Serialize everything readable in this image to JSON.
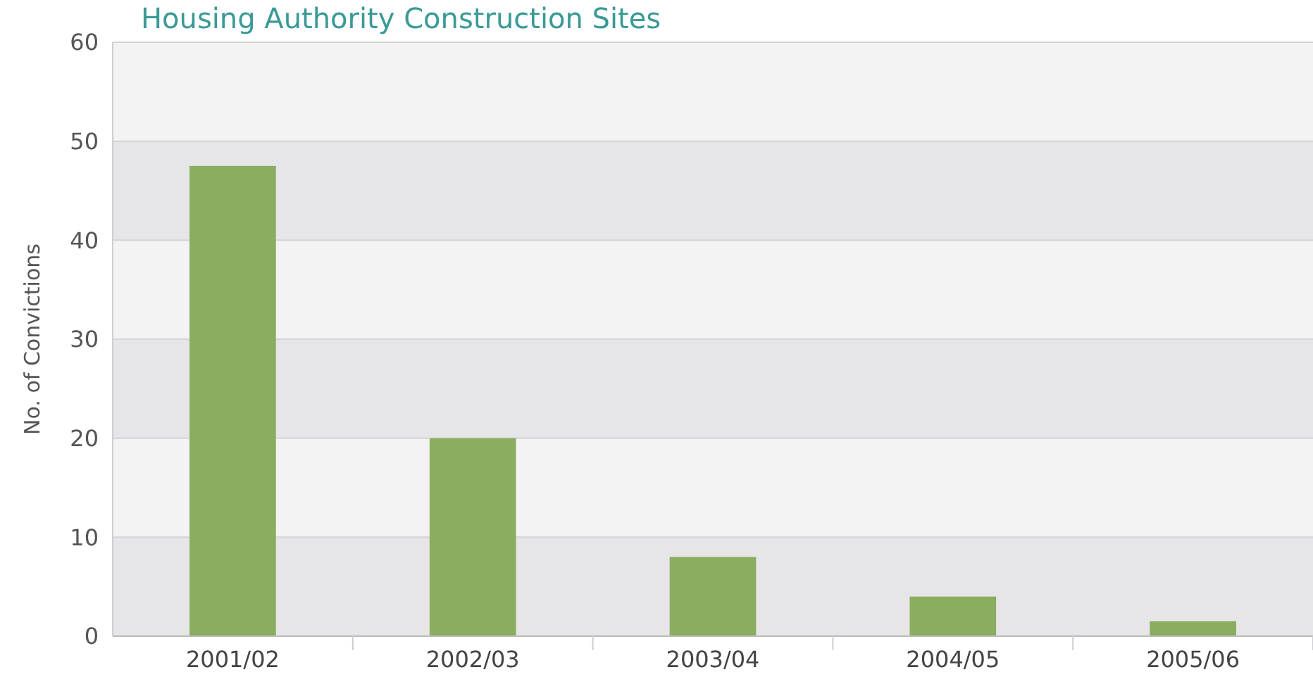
{
  "chart_data": {
    "type": "bar",
    "title": "Housing Authority Construction Sites",
    "ylabel": "No. of Convictions",
    "categories": [
      "2001/02",
      "2002/03",
      "2003/04",
      "2004/05",
      "2005/06"
    ],
    "values": [
      47.5,
      20,
      8,
      4,
      1.5
    ],
    "color": "#8aad5f",
    "ylim": [
      0,
      60
    ],
    "yticks": [
      0,
      10,
      20,
      30,
      40,
      50,
      60
    ],
    "grid": "y"
  }
}
